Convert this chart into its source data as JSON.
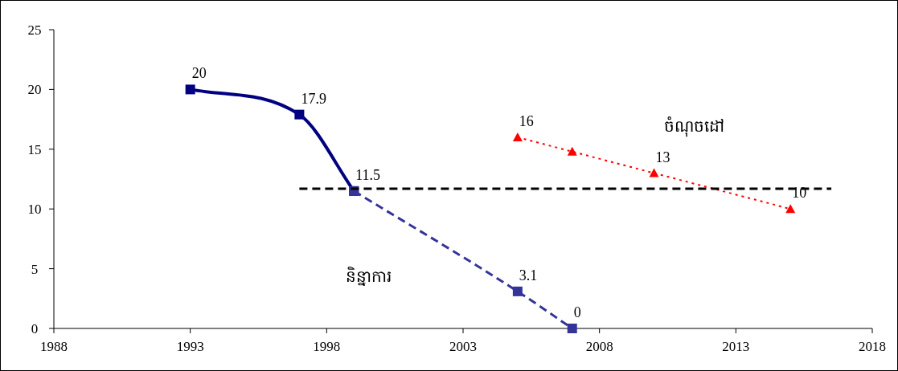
{
  "chart_data": {
    "type": "line",
    "xlim": [
      1988,
      2018
    ],
    "xticks": [
      1988,
      1993,
      1998,
      2003,
      2008,
      2013,
      2018
    ],
    "ylim": [
      0,
      25
    ],
    "yticks": [
      0,
      5,
      10,
      15,
      20,
      25
    ],
    "grid": false,
    "series": [
      {
        "color": "#000080",
        "x": [
          1993,
          1997,
          1999
        ],
        "values": [
          20,
          17.9,
          11.5
        ],
        "value_labels": [
          "20",
          "17.9",
          null
        ],
        "marker": "square",
        "line_style": "solid"
      },
      {
        "name": "និន្នាការ",
        "color": "#333399",
        "x": [
          1999,
          2005,
          2007
        ],
        "values": [
          11.5,
          3.1,
          0
        ],
        "value_labels": [
          "11.5",
          "3.1",
          "0"
        ],
        "marker": "square",
        "line_style": "dashed"
      },
      {
        "name": "ចំណុចដៅ",
        "color": "#ff0000",
        "x": [
          2005,
          2007,
          2010,
          2015
        ],
        "values": [
          16,
          14.8,
          13,
          10
        ],
        "value_labels": [
          "16",
          null,
          "13",
          "10"
        ],
        "marker": "triangle",
        "line_style": "dotted"
      },
      {
        "color": "#000000",
        "x": [
          1997,
          2016.5
        ],
        "values": [
          11.7,
          11.7
        ],
        "marker": "none",
        "line_style": "dashed"
      }
    ]
  }
}
